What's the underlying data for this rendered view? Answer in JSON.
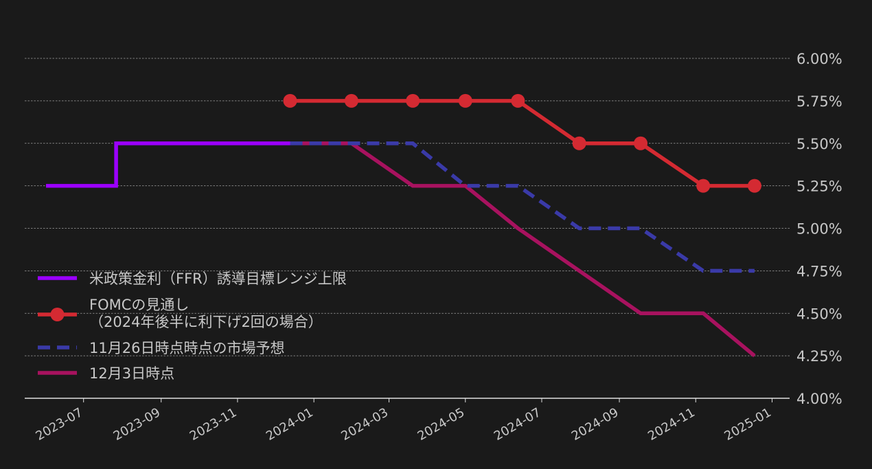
{
  "chart_data": {
    "type": "line",
    "title": "",
    "xlabel": "",
    "ylabel": "",
    "ylim": [
      4.0,
      6.0
    ],
    "xlim": [
      "2023-05-15",
      "2025-01-15"
    ],
    "y_axis_position": "right",
    "grid": "horizontal dashed",
    "legend_placement": "left",
    "yticks": [
      {
        "value": 4.0,
        "label": "4.00%"
      },
      {
        "value": 4.25,
        "label": "4.25%"
      },
      {
        "value": 4.5,
        "label": "4.50%"
      },
      {
        "value": 4.75,
        "label": "4.75%"
      },
      {
        "value": 5.0,
        "label": "5.00%"
      },
      {
        "value": 5.25,
        "label": "5.25%"
      },
      {
        "value": 5.5,
        "label": "5.50%"
      },
      {
        "value": 5.75,
        "label": "5.75%"
      },
      {
        "value": 6.0,
        "label": "6.00%"
      }
    ],
    "xticks": [
      {
        "date": "2023-07-01",
        "label": "2023-07"
      },
      {
        "date": "2023-09-01",
        "label": "2023-09"
      },
      {
        "date": "2023-11-01",
        "label": "2023-11"
      },
      {
        "date": "2024-01-01",
        "label": "2024-01"
      },
      {
        "date": "2024-03-01",
        "label": "2024-03"
      },
      {
        "date": "2024-05-01",
        "label": "2024-05"
      },
      {
        "date": "2024-07-01",
        "label": "2024-07"
      },
      {
        "date": "2024-09-01",
        "label": "2024-09"
      },
      {
        "date": "2024-11-01",
        "label": "2024-11"
      },
      {
        "date": "2025-01-01",
        "label": "2025-01"
      }
    ],
    "series": [
      {
        "name": "米政策金利（FFR）誘導目標レンジ上限",
        "color": "#9b00ff",
        "style": "solid",
        "markers": false,
        "points": [
          {
            "x": "2023-06-01",
            "y": 5.25
          },
          {
            "x": "2023-07-27",
            "y": 5.25
          },
          {
            "x": "2023-07-27",
            "y": 5.5
          },
          {
            "x": "2023-12-13",
            "y": 5.5
          }
        ]
      },
      {
        "name": "FOMCの見通し",
        "name_line2": "（2024年後半に利下げ2回の場合）",
        "color": "#d42a32",
        "style": "solid",
        "markers": true,
        "points": [
          {
            "x": "2023-12-13",
            "y": 5.75
          },
          {
            "x": "2024-01-31",
            "y": 5.75
          },
          {
            "x": "2024-03-20",
            "y": 5.75
          },
          {
            "x": "2024-05-01",
            "y": 5.75
          },
          {
            "x": "2024-06-12",
            "y": 5.75
          },
          {
            "x": "2024-07-31",
            "y": 5.5
          },
          {
            "x": "2024-09-18",
            "y": 5.5
          },
          {
            "x": "2024-11-07",
            "y": 5.25
          },
          {
            "x": "2024-12-18",
            "y": 5.25
          }
        ]
      },
      {
        "name": "11月26日時点時点の市場予想",
        "color": "#3a3aa8",
        "style": "dashed",
        "markers": false,
        "points": [
          {
            "x": "2023-12-13",
            "y": 5.5
          },
          {
            "x": "2024-01-31",
            "y": 5.5
          },
          {
            "x": "2024-03-20",
            "y": 5.5
          },
          {
            "x": "2024-05-01",
            "y": 5.25
          },
          {
            "x": "2024-06-12",
            "y": 5.25
          },
          {
            "x": "2024-07-31",
            "y": 5.0
          },
          {
            "x": "2024-09-18",
            "y": 5.0
          },
          {
            "x": "2024-11-07",
            "y": 4.75
          },
          {
            "x": "2024-12-18",
            "y": 4.75
          }
        ]
      },
      {
        "name": "12月3日時点",
        "color": "#a8125f",
        "style": "solid",
        "markers": false,
        "points": [
          {
            "x": "2023-12-13",
            "y": 5.5
          },
          {
            "x": "2024-01-31",
            "y": 5.5
          },
          {
            "x": "2024-03-20",
            "y": 5.25
          },
          {
            "x": "2024-05-01",
            "y": 5.25
          },
          {
            "x": "2024-06-12",
            "y": 5.0
          },
          {
            "x": "2024-07-31",
            "y": 4.75
          },
          {
            "x": "2024-09-18",
            "y": 4.5
          },
          {
            "x": "2024-11-07",
            "y": 4.5
          },
          {
            "x": "2024-12-18",
            "y": 4.25
          }
        ]
      }
    ]
  }
}
